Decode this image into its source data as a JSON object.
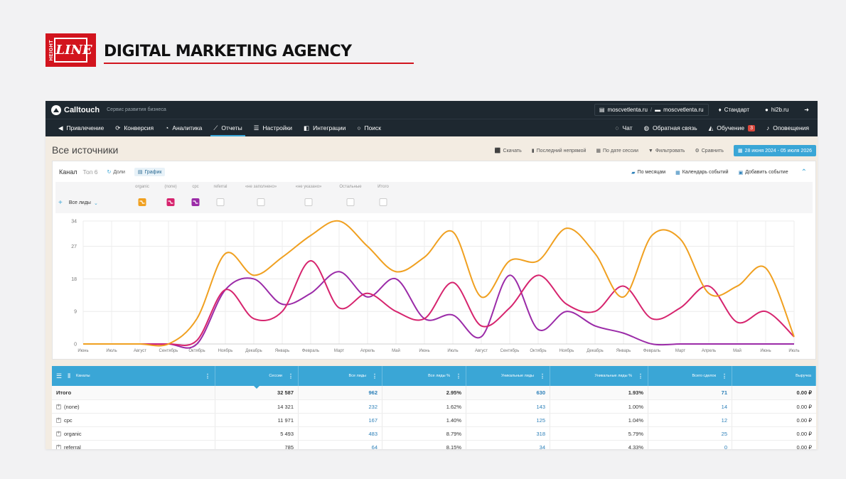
{
  "brand": {
    "logo_small": "HEIGHT",
    "logo_big": "LINE",
    "agency_title": "DIGITAL MARKETING AGENCY",
    "accent": "#d2141d"
  },
  "topbar": {
    "app_name": "Calltouch",
    "tagline": "Сервис развития бизнеса",
    "site_primary": "moscvetlenta.ru",
    "site_secondary": "moscvetlenta.ru",
    "plan": "Стандарт",
    "user": "hi2b.ru"
  },
  "nav": {
    "items": [
      {
        "label": "Привлечение",
        "icon": "megaphone-icon"
      },
      {
        "label": "Конверсия",
        "icon": "conversion-icon"
      },
      {
        "label": "Аналитика",
        "icon": "pie-icon"
      },
      {
        "label": "Отчеты",
        "icon": "chart-line-icon"
      },
      {
        "label": "Настройки",
        "icon": "sliders-icon"
      },
      {
        "label": "Интеграции",
        "icon": "puzzle-icon"
      },
      {
        "label": "Поиск",
        "icon": "search-icon"
      }
    ],
    "right": [
      {
        "label": "Чат",
        "icon": "chat-icon"
      },
      {
        "label": "Обратная связь",
        "icon": "feedback-icon"
      },
      {
        "label": "Обучение",
        "icon": "graduation-icon",
        "badge": "3"
      },
      {
        "label": "Оповещения",
        "icon": "bell-icon"
      }
    ]
  },
  "page": {
    "title": "Все источники",
    "tools": {
      "download": "Скачать",
      "last_touch": "Последний непрямой",
      "by_session_date": "По дате сессии",
      "filter": "Фильтровать",
      "compare": "Сравнить",
      "date_range": "28 июня 2024 - 05 июля 2026"
    }
  },
  "chart_panel": {
    "dimension": "Канал",
    "top": "Топ 6",
    "shares": "Доли",
    "graph": "График",
    "by_month": "По месяцам",
    "events_calendar": "Календарь событий",
    "add_event": "Добавить событие",
    "metric_select": "Все лиды",
    "legend": [
      {
        "label": "organic",
        "color": "#f0a020",
        "active": true
      },
      {
        "label": "(none)",
        "color": "#d6246e",
        "active": true
      },
      {
        "label": "cpc",
        "color": "#9b2ba8",
        "active": true
      },
      {
        "label": "referral",
        "active": false
      },
      {
        "label": "«не заполнено»",
        "active": false
      },
      {
        "label": "«не указано»",
        "active": false
      },
      {
        "label": "Остальные",
        "active": false
      },
      {
        "label": "Итого",
        "active": false
      }
    ]
  },
  "chart_data": {
    "type": "line",
    "x": [
      "Июнь",
      "Июль",
      "Август",
      "Сентябрь",
      "Октябрь",
      "Ноябрь",
      "Декабрь",
      "Январь",
      "Февраль",
      "Март",
      "Апрель",
      "Май",
      "Июнь",
      "Июль",
      "Август",
      "Сентябрь",
      "Октябрь",
      "Ноябрь",
      "Декабрь",
      "Январь",
      "Февраль",
      "Март",
      "Апрель",
      "Май",
      "Июнь",
      "Июль"
    ],
    "yticks": [
      0,
      9,
      18,
      27,
      34
    ],
    "ylim": [
      0,
      34
    ],
    "grid": true,
    "series": [
      {
        "name": "organic",
        "color": "#f0a020",
        "values": [
          0,
          0,
          0,
          0,
          7,
          25,
          19,
          24,
          30,
          34,
          27,
          20,
          24,
          31,
          13,
          23,
          23,
          32,
          25,
          13,
          30,
          29,
          14,
          16,
          21,
          2
        ]
      },
      {
        "name": "(none)",
        "color": "#d6246e",
        "values": [
          0,
          0,
          0,
          0,
          1,
          15,
          7,
          9,
          23,
          10,
          14,
          9,
          7,
          17,
          5,
          10,
          19,
          11,
          9,
          16,
          7,
          10,
          16,
          6,
          9,
          2
        ]
      },
      {
        "name": "cpc",
        "color": "#9b2ba8",
        "values": [
          0,
          0,
          0,
          0,
          0,
          15,
          18,
          11,
          14,
          20,
          13,
          18,
          7,
          8,
          2,
          19,
          4,
          9,
          5,
          3,
          0,
          0,
          0,
          0,
          0,
          0
        ]
      }
    ]
  },
  "table": {
    "headers": [
      "Каналы",
      "Сессии",
      "Все лиды",
      "Все лиды %",
      "Уникальные лиды",
      "Уникальные лиды %",
      "Всего сделок",
      "Выручка"
    ],
    "total": {
      "label": "Итого",
      "cells": [
        "32 587",
        "962",
        "2.95%",
        "630",
        "1.93%",
        "71",
        "0.00 ₽"
      ]
    },
    "rows": [
      {
        "label": "(none)",
        "cells": [
          "14 321",
          "232",
          "1.62%",
          "143",
          "1.00%",
          "14",
          "0.00 ₽"
        ]
      },
      {
        "label": "cpc",
        "cells": [
          "11 971",
          "167",
          "1.40%",
          "125",
          "1.04%",
          "12",
          "0.00 ₽"
        ]
      },
      {
        "label": "organic",
        "cells": [
          "5 493",
          "483",
          "8.79%",
          "318",
          "5.79%",
          "25",
          "0.00 ₽"
        ]
      },
      {
        "label": "referral",
        "cells": [
          "785",
          "64",
          "8.15%",
          "34",
          "4.33%",
          "0",
          "0.00 ₽"
        ]
      }
    ]
  }
}
